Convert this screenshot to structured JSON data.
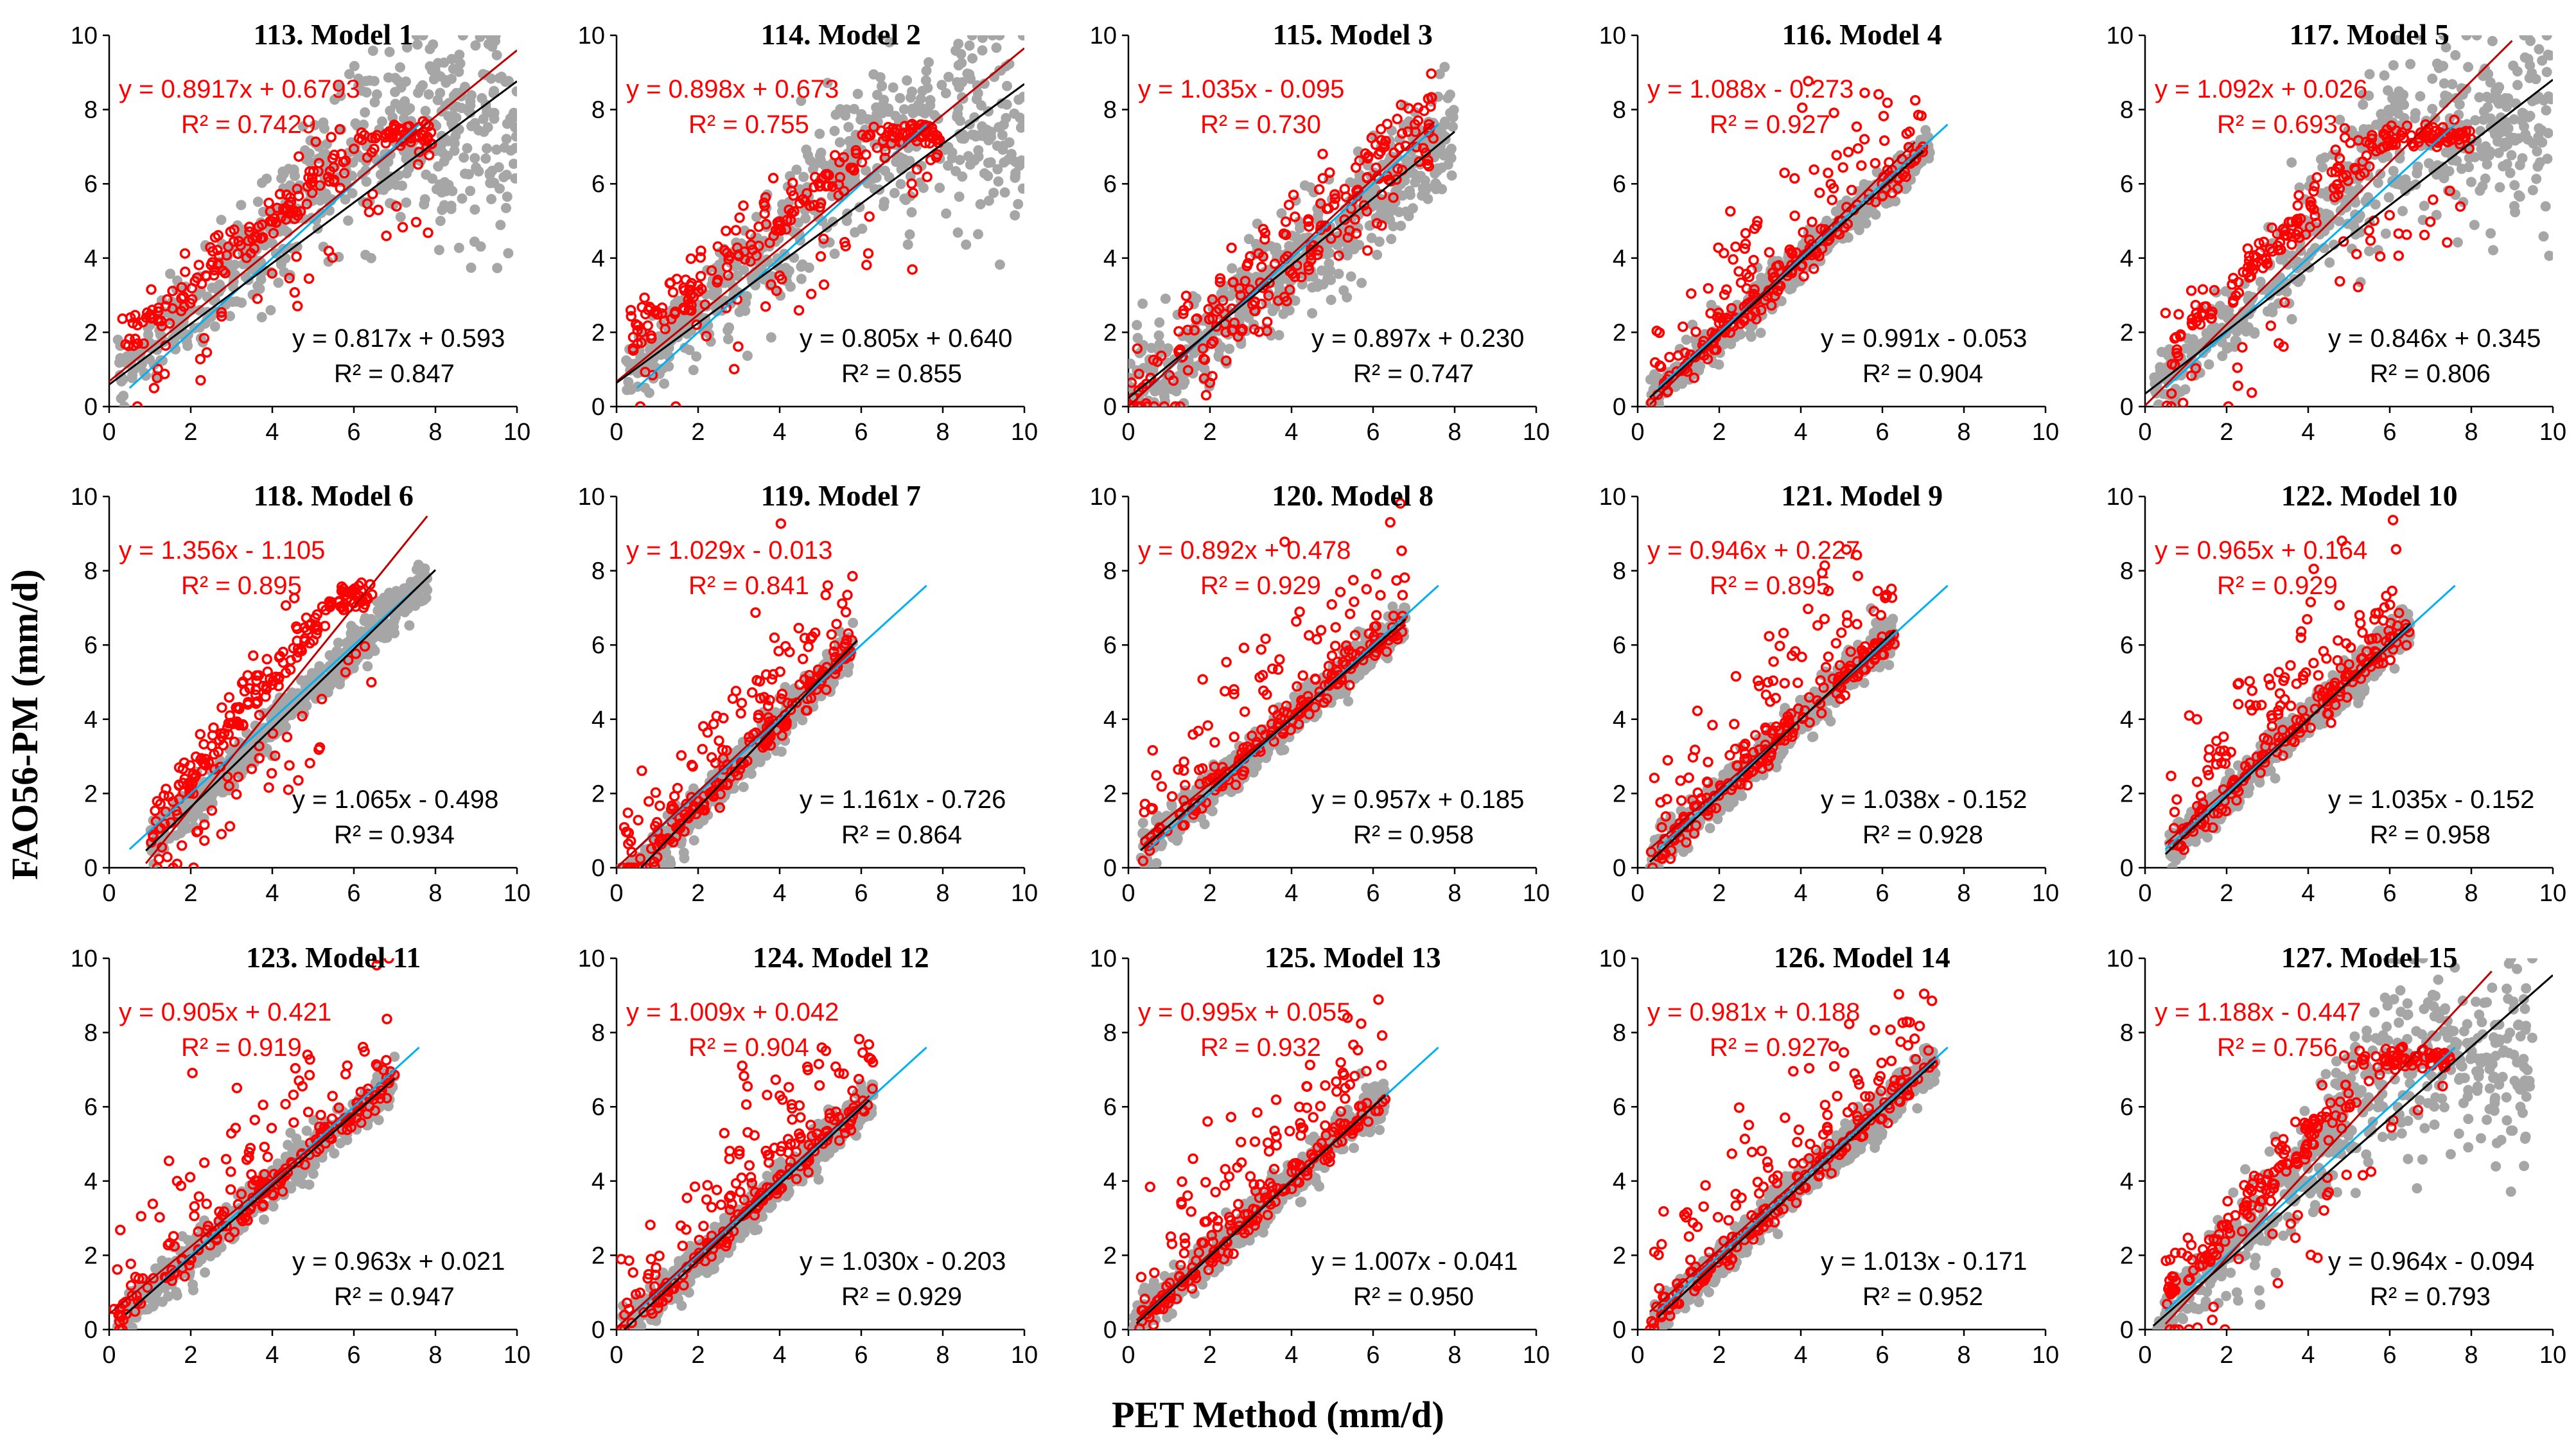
{
  "figure": {
    "ylabel": "FAO56-PM (mm/d)",
    "xlabel": "PET Method (mm/d)"
  },
  "colors": {
    "gray_points": "#a6a6a6",
    "red_points": "#ff0000",
    "red_line": "#c00000",
    "red_text": "#ff0000",
    "black_line": "#000000",
    "blue_line": "#00b0f0"
  },
  "chart_data": [
    {
      "type": "scatter",
      "title": "113. Model 1",
      "xlim": [
        0,
        10
      ],
      "ylim": [
        0,
        10
      ],
      "xticks": [
        "0",
        "2",
        "4",
        "6",
        "8",
        "10"
      ],
      "yticks": [
        "0",
        "2",
        "4",
        "6",
        "8",
        "10"
      ],
      "red_fit": {
        "equation": "y = 0.8917x + 0.6793",
        "r2": "R² = 0.7429",
        "slope": 0.8917,
        "intercept": 0.6793,
        "x_range": [
          0,
          10
        ]
      },
      "black_fit": {
        "equation": "y = 0.817x + 0.593",
        "r2": "R² = 0.847",
        "slope": 0.817,
        "intercept": 0.593,
        "x_range": [
          0,
          10
        ]
      },
      "blue_line": {
        "x_range": [
          0.5,
          7.6
        ]
      },
      "gray_cloud": {
        "x_range": [
          0.2,
          10
        ],
        "shape": "saturating"
      },
      "red_cloud": {
        "x_range": [
          0.3,
          8
        ],
        "shape": "upper-edge"
      }
    },
    {
      "type": "scatter",
      "title": "114. Model 2",
      "xlim": [
        0,
        10
      ],
      "ylim": [
        0,
        10
      ],
      "xticks": [
        "0",
        "2",
        "4",
        "6",
        "8",
        "10"
      ],
      "yticks": [
        "0",
        "2",
        "4",
        "6",
        "8",
        "10"
      ],
      "red_fit": {
        "equation": "y = 0.898x + 0.673",
        "r2": "R² = 0.755",
        "slope": 0.898,
        "intercept": 0.673,
        "x_range": [
          0,
          10
        ]
      },
      "black_fit": {
        "equation": "y = 0.805x + 0.640",
        "r2": "R² = 0.855",
        "slope": 0.805,
        "intercept": 0.64,
        "x_range": [
          0,
          10
        ]
      },
      "blue_line": {
        "x_range": [
          0.5,
          7.6
        ]
      },
      "gray_cloud": {
        "x_range": [
          0.2,
          10
        ],
        "shape": "saturating"
      },
      "red_cloud": {
        "x_range": [
          0.3,
          8
        ],
        "shape": "upper-edge"
      }
    },
    {
      "type": "scatter",
      "title": "115. Model 3",
      "xlim": [
        0,
        10
      ],
      "ylim": [
        0,
        10
      ],
      "xticks": [
        "0",
        "2",
        "4",
        "6",
        "8",
        "10"
      ],
      "yticks": [
        "0",
        "2",
        "4",
        "6",
        "8",
        "10"
      ],
      "red_fit": {
        "equation": "y = 1.035x - 0.095",
        "r2": "R² = 0.730",
        "slope": 1.035,
        "intercept": -0.095,
        "x_range": [
          0,
          7.5
        ]
      },
      "black_fit": {
        "equation": "y = 0.897x + 0.230",
        "r2": "R² = 0.747",
        "slope": 0.897,
        "intercept": 0.23,
        "x_range": [
          0,
          8
        ]
      },
      "blue_line": {
        "x_range": [
          0.5,
          7.6
        ]
      },
      "gray_cloud": {
        "x_range": [
          0,
          8
        ],
        "shape": "broad"
      },
      "red_cloud": {
        "x_range": [
          0,
          7.5
        ],
        "shape": "broad"
      }
    },
    {
      "type": "scatter",
      "title": "116. Model 4",
      "xlim": [
        0,
        10
      ],
      "ylim": [
        0,
        10
      ],
      "xticks": [
        "0",
        "2",
        "4",
        "6",
        "8",
        "10"
      ],
      "yticks": [
        "0",
        "2",
        "4",
        "6",
        "8",
        "10"
      ],
      "red_fit": {
        "equation": "y = 1.088x - 0.273",
        "r2": "R² = 0.927",
        "slope": 1.088,
        "intercept": -0.273,
        "x_range": [
          0.3,
          6.8
        ]
      },
      "black_fit": {
        "equation": "y = 0.991x - 0.053",
        "r2": "R² = 0.904",
        "slope": 0.991,
        "intercept": -0.053,
        "x_range": [
          0.3,
          7
        ]
      },
      "blue_line": {
        "x_range": [
          0.5,
          7.6
        ]
      },
      "gray_cloud": {
        "x_range": [
          0.3,
          7.2
        ],
        "shape": "tight"
      },
      "red_cloud": {
        "x_range": [
          0.3,
          7
        ],
        "shape": "tight"
      }
    },
    {
      "type": "scatter",
      "title": "117. Model 5",
      "xlim": [
        0,
        10
      ],
      "ylim": [
        0,
        10
      ],
      "xticks": [
        "0",
        "2",
        "4",
        "6",
        "8",
        "10"
      ],
      "yticks": [
        "0",
        "2",
        "4",
        "6",
        "8",
        "10"
      ],
      "red_fit": {
        "equation": "y = 1.092x + 0.026",
        "r2": "R² = 0.693",
        "slope": 1.092,
        "intercept": 0.026,
        "x_range": [
          0,
          9
        ]
      },
      "black_fit": {
        "equation": "y = 0.846x + 0.345",
        "r2": "R² = 0.806",
        "slope": 0.846,
        "intercept": 0.345,
        "x_range": [
          0,
          10
        ]
      },
      "blue_line": {
        "x_range": [
          0.5,
          7.6
        ]
      },
      "gray_cloud": {
        "x_range": [
          0.2,
          10
        ],
        "shape": "saturating"
      },
      "red_cloud": {
        "x_range": [
          0.5,
          8
        ],
        "shape": "upper-edge"
      }
    },
    {
      "type": "scatter",
      "title": "118. Model 6",
      "xlim": [
        0,
        10
      ],
      "ylim": [
        0,
        10
      ],
      "xticks": [
        "0",
        "2",
        "4",
        "6",
        "8",
        "10"
      ],
      "yticks": [
        "0",
        "2",
        "4",
        "6",
        "8",
        "10"
      ],
      "red_fit": {
        "equation": "y = 1.356x - 1.105",
        "r2": "R² = 0.895",
        "slope": 1.356,
        "intercept": -1.105,
        "x_range": [
          0.9,
          7.8
        ]
      },
      "black_fit": {
        "equation": "y = 1.065x - 0.498",
        "r2": "R² = 0.934",
        "slope": 1.065,
        "intercept": -0.498,
        "x_range": [
          0.9,
          8
        ]
      },
      "blue_line": {
        "x_range": [
          0.5,
          7.6
        ]
      },
      "gray_cloud": {
        "x_range": [
          0.9,
          7.8
        ],
        "shape": "tight"
      },
      "red_cloud": {
        "x_range": [
          1,
          6.5
        ],
        "shape": "upper-edge"
      }
    },
    {
      "type": "scatter",
      "title": "119. Model 7",
      "xlim": [
        0,
        10
      ],
      "ylim": [
        0,
        10
      ],
      "xticks": [
        "0",
        "2",
        "4",
        "6",
        "8",
        "10"
      ],
      "yticks": [
        "0",
        "2",
        "4",
        "6",
        "8",
        "10"
      ],
      "red_fit": {
        "equation": "y = 1.029x - 0.013",
        "r2": "R² = 0.841",
        "slope": 1.029,
        "intercept": -0.013,
        "x_range": [
          0,
          5.8
        ]
      },
      "black_fit": {
        "equation": "y = 1.161x - 0.726",
        "r2": "R² = 0.864",
        "slope": 1.161,
        "intercept": -0.726,
        "x_range": [
          0.6,
          5.9
        ]
      },
      "blue_line": {
        "x_range": [
          0.5,
          7.6
        ]
      },
      "gray_cloud": {
        "x_range": [
          0.1,
          5.8
        ],
        "shape": "tight"
      },
      "red_cloud": {
        "x_range": [
          0.1,
          5.8
        ],
        "shape": "outliers-above"
      }
    },
    {
      "type": "scatter",
      "title": "120. Model 8",
      "xlim": [
        0,
        10
      ],
      "ylim": [
        0,
        10
      ],
      "xticks": [
        "0",
        "2",
        "4",
        "6",
        "8",
        "10"
      ],
      "yticks": [
        "0",
        "2",
        "4",
        "6",
        "8",
        "10"
      ],
      "red_fit": {
        "equation": "y = 0.892x + 0.478",
        "r2": "R² = 0.929",
        "slope": 0.892,
        "intercept": 0.478,
        "x_range": [
          0.3,
          6.8
        ]
      },
      "black_fit": {
        "equation": "y = 0.957x + 0.185",
        "r2": "R² = 0.958",
        "slope": 0.957,
        "intercept": 0.185,
        "x_range": [
          0.3,
          6.8
        ]
      },
      "blue_line": {
        "x_range": [
          0.5,
          7.6
        ]
      },
      "gray_cloud": {
        "x_range": [
          0.3,
          6.8
        ],
        "shape": "tight"
      },
      "red_cloud": {
        "x_range": [
          0.3,
          6.8
        ],
        "shape": "outliers-above"
      }
    },
    {
      "type": "scatter",
      "title": "121. Model 9",
      "xlim": [
        0,
        10
      ],
      "ylim": [
        0,
        10
      ],
      "xticks": [
        "0",
        "2",
        "4",
        "6",
        "8",
        "10"
      ],
      "yticks": [
        "0",
        "2",
        "4",
        "6",
        "8",
        "10"
      ],
      "red_fit": {
        "equation": "y = 0.946x + 0.227",
        "r2": "R² = 0.895",
        "slope": 0.946,
        "intercept": 0.227,
        "x_range": [
          0.3,
          6.3
        ]
      },
      "black_fit": {
        "equation": "y = 1.038x - 0.152",
        "r2": "R² = 0.928",
        "slope": 1.038,
        "intercept": -0.152,
        "x_range": [
          0.3,
          6.3
        ]
      },
      "blue_line": {
        "x_range": [
          0.5,
          7.6
        ]
      },
      "gray_cloud": {
        "x_range": [
          0.3,
          6.3
        ],
        "shape": "tight"
      },
      "red_cloud": {
        "x_range": [
          0.3,
          6.3
        ],
        "shape": "outliers-above"
      }
    },
    {
      "type": "scatter",
      "title": "122. Model 10",
      "xlim": [
        0,
        10
      ],
      "ylim": [
        0,
        10
      ],
      "xticks": [
        "0",
        "2",
        "4",
        "6",
        "8",
        "10"
      ],
      "yticks": [
        "0",
        "2",
        "4",
        "6",
        "8",
        "10"
      ],
      "red_fit": {
        "equation": "y = 0.965x + 0.164",
        "r2": "R² = 0.929",
        "slope": 0.965,
        "intercept": 0.164,
        "x_range": [
          0.5,
          6.5
        ]
      },
      "black_fit": {
        "equation": "y = 1.035x - 0.152",
        "r2": "R² = 0.958",
        "slope": 1.035,
        "intercept": -0.152,
        "x_range": [
          0.5,
          6.5
        ]
      },
      "blue_line": {
        "x_range": [
          0.5,
          7.6
        ]
      },
      "gray_cloud": {
        "x_range": [
          0.5,
          6.5
        ],
        "shape": "tight"
      },
      "red_cloud": {
        "x_range": [
          0.5,
          6.5
        ],
        "shape": "outliers-above"
      }
    },
    {
      "type": "scatter",
      "title": "123. Model 11",
      "xlim": [
        0,
        10
      ],
      "ylim": [
        0,
        10
      ],
      "xticks": [
        "0",
        "2",
        "4",
        "6",
        "8",
        "10"
      ],
      "yticks": [
        "0",
        "2",
        "4",
        "6",
        "8",
        "10"
      ],
      "red_fit": {
        "equation": "y = 0.905x + 0.421",
        "r2": "R² = 0.919",
        "slope": 0.905,
        "intercept": 0.421,
        "x_range": [
          0,
          7
        ]
      },
      "black_fit": {
        "equation": "y = 0.963x + 0.021",
        "r2": "R² = 0.947",
        "slope": 0.963,
        "intercept": 0.021,
        "x_range": [
          0.4,
          7
        ]
      },
      "blue_line": {
        "x_range": [
          0.5,
          7.6
        ]
      },
      "gray_cloud": {
        "x_range": [
          0.2,
          7
        ],
        "shape": "tight"
      },
      "red_cloud": {
        "x_range": [
          0.1,
          7
        ],
        "shape": "outliers-above"
      }
    },
    {
      "type": "scatter",
      "title": "124. Model 12",
      "xlim": [
        0,
        10
      ],
      "ylim": [
        0,
        10
      ],
      "xticks": [
        "0",
        "2",
        "4",
        "6",
        "8",
        "10"
      ],
      "yticks": [
        "0",
        "2",
        "4",
        "6",
        "8",
        "10"
      ],
      "red_fit": {
        "equation": "y = 1.009x + 0.042",
        "r2": "R² = 0.904",
        "slope": 1.009,
        "intercept": 0.042,
        "x_range": [
          0,
          6.2
        ]
      },
      "black_fit": {
        "equation": "y = 1.030x - 0.203",
        "r2": "R² = 0.929",
        "slope": 1.03,
        "intercept": -0.203,
        "x_range": [
          0.2,
          6.2
        ]
      },
      "blue_line": {
        "x_range": [
          0.5,
          7.6
        ]
      },
      "gray_cloud": {
        "x_range": [
          0.1,
          6.3
        ],
        "shape": "tight"
      },
      "red_cloud": {
        "x_range": [
          0.1,
          6.3
        ],
        "shape": "outliers-above"
      }
    },
    {
      "type": "scatter",
      "title": "125. Model 13",
      "xlim": [
        0,
        10
      ],
      "ylim": [
        0,
        10
      ],
      "xticks": [
        "0",
        "2",
        "4",
        "6",
        "8",
        "10"
      ],
      "yticks": [
        "0",
        "2",
        "4",
        "6",
        "8",
        "10"
      ],
      "red_fit": {
        "equation": "y = 0.995x + 0.055",
        "r2": "R² = 0.932",
        "slope": 0.995,
        "intercept": 0.055,
        "x_range": [
          0.2,
          6.3
        ]
      },
      "black_fit": {
        "equation": "y = 1.007x - 0.041",
        "r2": "R² = 0.950",
        "slope": 1.007,
        "intercept": -0.041,
        "x_range": [
          0.2,
          6.3
        ]
      },
      "blue_line": {
        "x_range": [
          0.5,
          7.6
        ]
      },
      "gray_cloud": {
        "x_range": [
          0.1,
          6.3
        ],
        "shape": "tight"
      },
      "red_cloud": {
        "x_range": [
          0.1,
          6.3
        ],
        "shape": "outliers-above"
      }
    },
    {
      "type": "scatter",
      "title": "126. Model 14",
      "xlim": [
        0,
        10
      ],
      "ylim": [
        0,
        10
      ],
      "xticks": [
        "0",
        "2",
        "4",
        "6",
        "8",
        "10"
      ],
      "yticks": [
        "0",
        "2",
        "4",
        "6",
        "8",
        "10"
      ],
      "red_fit": {
        "equation": "y = 0.981x + 0.188",
        "r2": "R² = 0.927",
        "slope": 0.981,
        "intercept": 0.188,
        "x_range": [
          0.3,
          7.3
        ]
      },
      "black_fit": {
        "equation": "y = 1.013x - 0.171",
        "r2": "R² = 0.952",
        "slope": 1.013,
        "intercept": -0.171,
        "x_range": [
          0.5,
          7.3
        ]
      },
      "blue_line": {
        "x_range": [
          0.5,
          7.6
        ]
      },
      "gray_cloud": {
        "x_range": [
          0.3,
          7.3
        ],
        "shape": "tight"
      },
      "red_cloud": {
        "x_range": [
          0.3,
          7.3
        ],
        "shape": "outliers-above"
      }
    },
    {
      "type": "scatter",
      "title": "127. Model 15",
      "xlim": [
        0,
        10
      ],
      "ylim": [
        0,
        10
      ],
      "xticks": [
        "0",
        "2",
        "4",
        "6",
        "8",
        "10"
      ],
      "yticks": [
        "0",
        "2",
        "4",
        "6",
        "8",
        "10"
      ],
      "red_fit": {
        "equation": "y = 1.188x - 0.447",
        "r2": "R² = 0.756",
        "slope": 1.188,
        "intercept": -0.447,
        "x_range": [
          0.5,
          8.5
        ]
      },
      "black_fit": {
        "equation": "y = 0.964x - 0.094",
        "r2": "R² = 0.793",
        "slope": 0.964,
        "intercept": -0.094,
        "x_range": [
          0.2,
          10
        ]
      },
      "blue_line": {
        "x_range": [
          0.5,
          7.6
        ]
      },
      "gray_cloud": {
        "x_range": [
          0.3,
          9.5
        ],
        "shape": "saturating"
      },
      "red_cloud": {
        "x_range": [
          0.5,
          7.5
        ],
        "shape": "upper-edge"
      }
    }
  ]
}
